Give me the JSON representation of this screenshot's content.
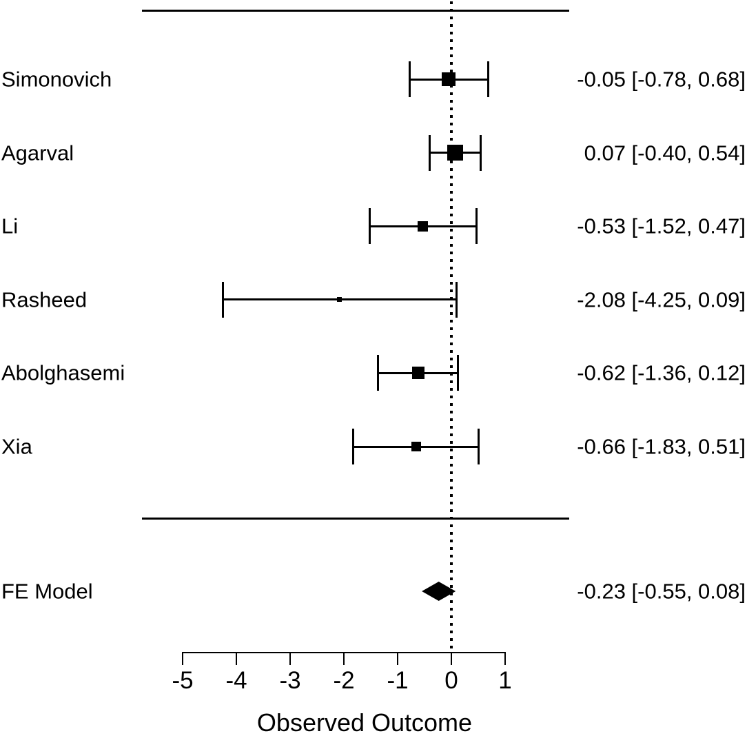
{
  "colors": {
    "ink": "#000000",
    "background": "#ffffff"
  },
  "chart_data": {
    "type": "forest",
    "title": "",
    "xlabel": "Observed Outcome",
    "ylabel": "",
    "x_ticks": [
      "-5",
      "-4",
      "-3",
      "-2",
      "-1",
      "0",
      "1"
    ],
    "x_tick_values": [
      -5,
      -4,
      -3,
      -2,
      -1,
      0,
      1
    ],
    "axis_range": [
      -5,
      1
    ],
    "reference_line_value": 0,
    "grid": "off",
    "legend": "none",
    "studies": [
      {
        "label": "Simonovich",
        "estimate": -0.05,
        "ci_lower": -0.78,
        "ci_upper": 0.68,
        "annotation": "-0.05 [-0.78, 0.68]",
        "marker_size_px": 20
      },
      {
        "label": "Agarval",
        "estimate": 0.07,
        "ci_lower": -0.4,
        "ci_upper": 0.54,
        "annotation": "0.07 [-0.40, 0.54]",
        "marker_size_px": 23
      },
      {
        "label": "Li",
        "estimate": -0.53,
        "ci_lower": -1.52,
        "ci_upper": 0.47,
        "annotation": "-0.53 [-1.52, 0.47]",
        "marker_size_px": 15
      },
      {
        "label": "Rasheed",
        "estimate": -2.08,
        "ci_lower": -4.25,
        "ci_upper": 0.09,
        "annotation": "-2.08 [-4.25, 0.09]",
        "marker_size_px": 7
      },
      {
        "label": "Abolghasemi",
        "estimate": -0.62,
        "ci_lower": -1.36,
        "ci_upper": 0.12,
        "annotation": "-0.62 [-1.36, 0.12]",
        "marker_size_px": 18
      },
      {
        "label": "Xia",
        "estimate": -0.66,
        "ci_lower": -1.83,
        "ci_upper": 0.51,
        "annotation": "-0.66 [-1.83, 0.51]",
        "marker_size_px": 14
      }
    ],
    "summary": {
      "label": "FE Model",
      "estimate": -0.23,
      "ci_lower": -0.55,
      "ci_upper": 0.08,
      "annotation": "-0.23 [-0.55, 0.08]"
    }
  }
}
